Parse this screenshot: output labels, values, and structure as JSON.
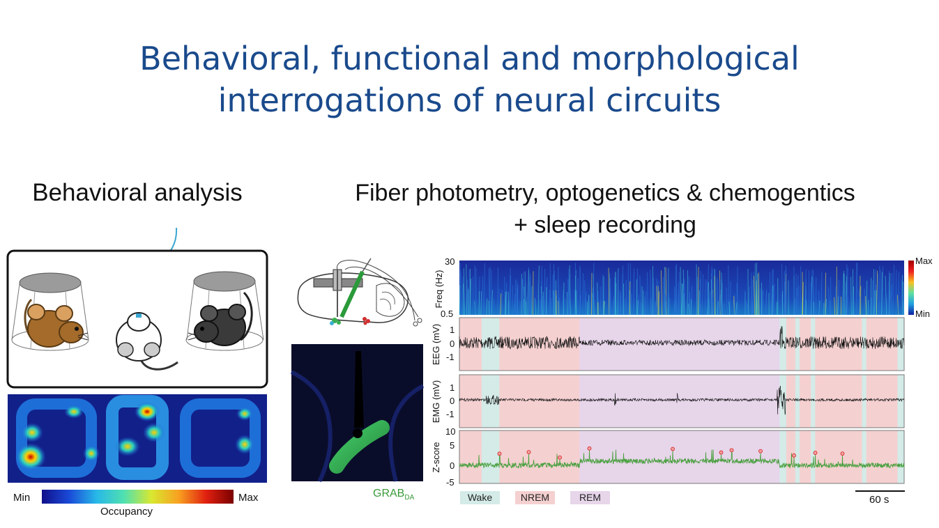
{
  "title_lines": [
    "Behavioral, functional and morphological",
    "interrogations of neural circuits"
  ],
  "left": {
    "heading": "Behavioral analysis",
    "colorbar": {
      "min_label": "Min",
      "max_label": "Max",
      "caption": "Occupancy"
    }
  },
  "right": {
    "heading_lines": [
      "Fiber photometry, optogenetics & chemogentics",
      "+ sleep recording"
    ],
    "sensor_label": {
      "main": "GRAB",
      "sub": "DA"
    },
    "spectrogram": {
      "ylabel": "Freq (Hz)",
      "ytick_top": "30",
      "ytick_bottom": "0.5",
      "scale_max": "Max",
      "scale_min": "Min"
    },
    "eeg": {
      "ylabel": "EEG (mV)",
      "yticks": [
        "1",
        "0",
        "-1"
      ]
    },
    "emg": {
      "ylabel": "EMG (mV)",
      "yticks": [
        "1",
        "0",
        "-1"
      ]
    },
    "zscore": {
      "ylabel": "Z-score",
      "yticks": [
        "10",
        "5",
        "0",
        "-5"
      ]
    },
    "states": [
      {
        "label": "Wake",
        "color": "#d4ebe8"
      },
      {
        "label": "NREM",
        "color": "#f5d0d0"
      },
      {
        "label": "REM",
        "color": "#e7d5ea"
      }
    ],
    "scale_bar": "60 s"
  }
}
